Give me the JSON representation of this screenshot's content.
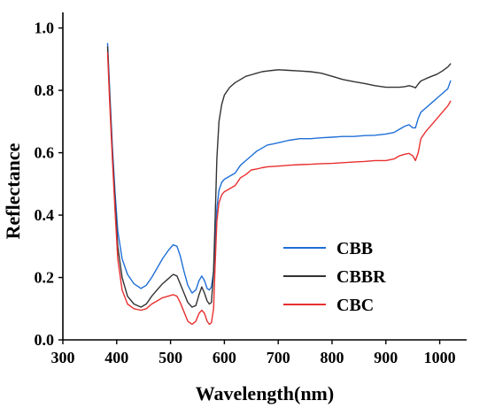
{
  "chart_data": {
    "type": "line",
    "title": "",
    "xlabel": "Wavelength(nm)",
    "ylabel": "Reflectance",
    "xlim": [
      300,
      1050
    ],
    "ylim": [
      0.0,
      1.05
    ],
    "xticks": [
      300,
      400,
      500,
      600,
      700,
      800,
      900,
      1000
    ],
    "xtick_labels": [
      "300",
      "400",
      "500",
      "600",
      "700",
      "800",
      "900",
      "1000"
    ],
    "yticks": [
      0.0,
      0.2,
      0.4,
      0.6,
      0.8,
      1.0
    ],
    "ytick_labels": [
      "0.0",
      "0.2",
      "0.4",
      "0.6",
      "0.8",
      "1.0"
    ],
    "grid": false,
    "legend_position": "right",
    "series": [
      {
        "name": "CBB",
        "color": "#1f6fd6",
        "x": [
          383,
          387,
          392,
          397,
          402,
          410,
          420,
          432,
          445,
          455,
          465,
          475,
          485,
          495,
          505,
          512,
          518,
          525,
          532,
          540,
          547,
          553,
          558,
          563,
          568,
          572,
          576,
          580,
          583,
          586,
          590,
          595,
          600,
          610,
          620,
          630,
          640,
          650,
          660,
          670,
          680,
          690,
          700,
          720,
          740,
          760,
          780,
          800,
          820,
          840,
          860,
          880,
          900,
          915,
          925,
          935,
          943,
          950,
          955,
          960,
          965,
          975,
          985,
          995,
          1005,
          1015,
          1020
        ],
        "y": [
          0.95,
          0.8,
          0.62,
          0.47,
          0.35,
          0.26,
          0.21,
          0.18,
          0.165,
          0.175,
          0.2,
          0.23,
          0.26,
          0.285,
          0.305,
          0.3,
          0.27,
          0.22,
          0.175,
          0.15,
          0.16,
          0.19,
          0.205,
          0.19,
          0.165,
          0.16,
          0.17,
          0.22,
          0.32,
          0.42,
          0.48,
          0.505,
          0.515,
          0.525,
          0.535,
          0.56,
          0.575,
          0.59,
          0.605,
          0.615,
          0.625,
          0.628,
          0.632,
          0.64,
          0.645,
          0.645,
          0.648,
          0.65,
          0.652,
          0.652,
          0.655,
          0.656,
          0.66,
          0.665,
          0.675,
          0.685,
          0.69,
          0.68,
          0.68,
          0.71,
          0.73,
          0.745,
          0.76,
          0.775,
          0.79,
          0.805,
          0.83
        ]
      },
      {
        "name": "CBBR",
        "color": "#333333",
        "x": [
          383,
          387,
          392,
          397,
          402,
          410,
          420,
          432,
          445,
          455,
          465,
          475,
          485,
          495,
          505,
          512,
          518,
          525,
          532,
          540,
          547,
          553,
          558,
          563,
          568,
          572,
          576,
          580,
          583,
          586,
          590,
          595,
          600,
          610,
          620,
          630,
          640,
          650,
          660,
          670,
          680,
          690,
          700,
          720,
          740,
          760,
          780,
          800,
          820,
          840,
          860,
          880,
          900,
          915,
          925,
          935,
          943,
          950,
          955,
          960,
          965,
          975,
          985,
          995,
          1005,
          1015,
          1020
        ],
        "y": [
          0.94,
          0.78,
          0.6,
          0.44,
          0.3,
          0.2,
          0.14,
          0.115,
          0.105,
          0.115,
          0.14,
          0.16,
          0.18,
          0.195,
          0.21,
          0.205,
          0.18,
          0.15,
          0.12,
          0.105,
          0.11,
          0.145,
          0.17,
          0.15,
          0.125,
          0.115,
          0.12,
          0.22,
          0.4,
          0.58,
          0.7,
          0.755,
          0.785,
          0.81,
          0.825,
          0.835,
          0.845,
          0.85,
          0.855,
          0.86,
          0.862,
          0.864,
          0.866,
          0.864,
          0.862,
          0.86,
          0.855,
          0.845,
          0.835,
          0.828,
          0.822,
          0.815,
          0.81,
          0.81,
          0.81,
          0.812,
          0.815,
          0.812,
          0.808,
          0.82,
          0.83,
          0.838,
          0.845,
          0.852,
          0.862,
          0.875,
          0.885
        ]
      },
      {
        "name": "CBC",
        "color": "#e83030",
        "x": [
          383,
          387,
          392,
          397,
          402,
          410,
          420,
          432,
          445,
          455,
          465,
          475,
          485,
          495,
          505,
          512,
          518,
          525,
          532,
          540,
          547,
          553,
          558,
          563,
          568,
          572,
          576,
          580,
          583,
          586,
          590,
          595,
          600,
          610,
          620,
          630,
          640,
          650,
          660,
          670,
          680,
          690,
          700,
          720,
          740,
          760,
          780,
          800,
          820,
          840,
          860,
          880,
          900,
          915,
          925,
          935,
          943,
          950,
          955,
          960,
          965,
          975,
          985,
          995,
          1005,
          1015,
          1020
        ],
        "y": [
          0.92,
          0.76,
          0.58,
          0.41,
          0.26,
          0.16,
          0.115,
          0.1,
          0.095,
          0.1,
          0.115,
          0.125,
          0.135,
          0.14,
          0.145,
          0.14,
          0.12,
          0.09,
          0.06,
          0.05,
          0.06,
          0.085,
          0.095,
          0.085,
          0.06,
          0.05,
          0.055,
          0.1,
          0.25,
          0.38,
          0.44,
          0.465,
          0.475,
          0.485,
          0.495,
          0.52,
          0.53,
          0.545,
          0.548,
          0.552,
          0.555,
          0.556,
          0.557,
          0.56,
          0.562,
          0.563,
          0.565,
          0.566,
          0.568,
          0.57,
          0.572,
          0.575,
          0.575,
          0.58,
          0.59,
          0.595,
          0.598,
          0.59,
          0.575,
          0.6,
          0.645,
          0.67,
          0.69,
          0.71,
          0.73,
          0.75,
          0.765
        ]
      }
    ]
  }
}
